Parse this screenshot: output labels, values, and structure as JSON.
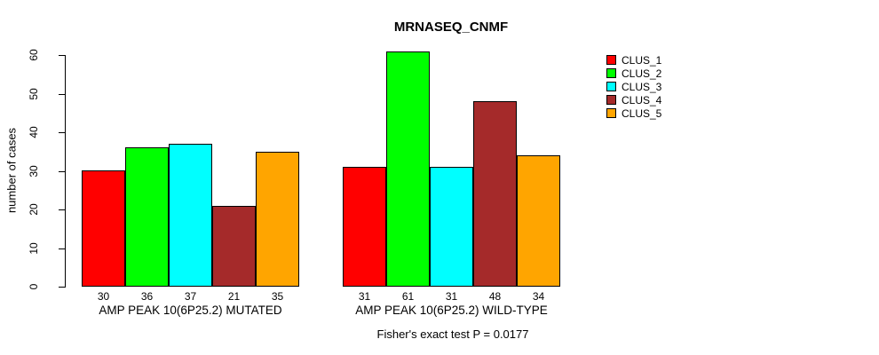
{
  "chart_data": {
    "type": "bar",
    "title": "MRNASEQ_CNMF",
    "ylabel": "number of cases",
    "xlabel": "",
    "ylim": [
      0,
      60
    ],
    "y_ticks": [
      0,
      10,
      20,
      30,
      40,
      50,
      60
    ],
    "grid": false,
    "legend_position": "right",
    "categories": [
      "AMP PEAK 10(6P25.2) MUTATED",
      "AMP PEAK 10(6P25.2) WILD-TYPE"
    ],
    "series": [
      {
        "name": "CLUS_1",
        "color": "#FF0000",
        "values": [
          30,
          31
        ]
      },
      {
        "name": "CLUS_2",
        "color": "#00FF00",
        "values": [
          36,
          61
        ]
      },
      {
        "name": "CLUS_3",
        "color": "#00FFFF",
        "values": [
          37,
          31
        ]
      },
      {
        "name": "CLUS_4",
        "color": "#A52A2A",
        "values": [
          21,
          48
        ]
      },
      {
        "name": "CLUS_5",
        "color": "#FFA500",
        "values": [
          35,
          34
        ]
      }
    ],
    "bar_value_labels": [
      [
        30,
        36,
        37,
        21,
        35
      ],
      [
        31,
        61,
        31,
        48,
        34
      ]
    ],
    "annotation": "Fisher's exact test P = 0.0177"
  }
}
